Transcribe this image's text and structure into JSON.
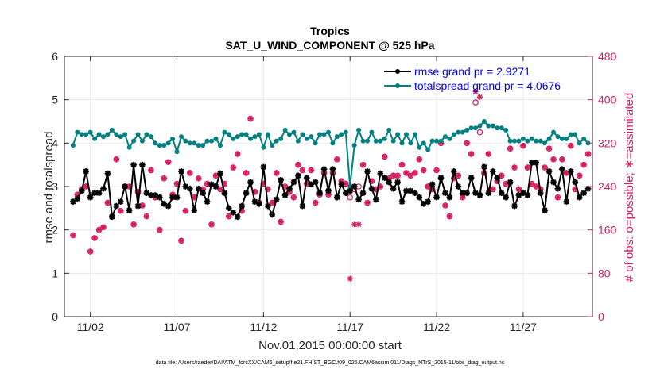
{
  "chart_data": {
    "type": "line",
    "title": "Tropics",
    "subtitle": "SAT_U_WIND_COMPONENT @ 525 hPa",
    "xlabel": "Nov.01,2015 00:00:00 start",
    "ylabel": "rmse and totalspread",
    "y2label": "# of obs: o=possible; ∗=assimilated",
    "footnote": "data file: /Users/raeder/DAI/ATM_forcXX/CAM6_setup/f.e21.FHIST_BGC.f09_025.CAM6assim.011/Diags_NTrS_2015-11/obs_diag_output.nc",
    "xlim": [
      0.5,
      31.0
    ],
    "ylim": [
      0,
      6
    ],
    "y2lim": [
      0,
      480
    ],
    "grid": true,
    "legend_position": "top-right",
    "x_tick_values": [
      2,
      7,
      12,
      17,
      22,
      27
    ],
    "x_tick_labels": [
      "11/02",
      "11/07",
      "11/12",
      "11/17",
      "11/22",
      "11/27"
    ],
    "y_ticks": [
      0,
      1,
      2,
      3,
      4,
      5,
      6
    ],
    "y2_ticks": [
      0,
      80,
      160,
      240,
      320,
      400,
      480
    ],
    "colors": {
      "rmse": "#000000",
      "totalspread": "#008080",
      "obs": "#d81b60",
      "legend_text": "#0000ff"
    },
    "series": [
      {
        "name": "rmse",
        "legend": "rmse grand pr = 2.9271",
        "axis": "left",
        "marker": "star",
        "x": [
          1.0,
          1.25,
          1.5,
          1.75,
          2.0,
          2.25,
          2.5,
          2.75,
          3.0,
          3.25,
          3.5,
          3.75,
          4.0,
          4.25,
          4.5,
          4.75,
          5.0,
          5.25,
          5.5,
          5.75,
          6.0,
          6.25,
          6.5,
          6.75,
          7.0,
          7.25,
          7.5,
          7.75,
          8.0,
          8.25,
          8.5,
          8.75,
          9.0,
          9.25,
          9.5,
          9.75,
          10.0,
          10.25,
          10.5,
          10.75,
          11.0,
          11.25,
          11.5,
          11.75,
          12.0,
          12.25,
          12.5,
          12.75,
          13.0,
          13.25,
          13.5,
          13.75,
          14.0,
          14.25,
          14.5,
          14.75,
          15.0,
          15.25,
          15.5,
          15.75,
          16.0,
          16.25,
          16.5,
          16.75,
          17.0,
          17.25,
          17.5,
          17.75,
          18.0,
          18.25,
          18.5,
          18.75,
          19.0,
          19.25,
          19.5,
          19.75,
          20.0,
          20.25,
          20.5,
          20.75,
          21.0,
          21.25,
          21.5,
          21.75,
          22.0,
          22.25,
          22.5,
          22.75,
          23.0,
          23.25,
          23.5,
          23.75,
          24.0,
          24.25,
          24.5,
          24.75,
          25.0,
          25.25,
          25.5,
          25.75,
          26.0,
          26.25,
          26.5,
          26.75,
          27.0,
          27.25,
          27.5,
          27.75,
          28.0,
          28.25,
          28.5,
          28.75,
          29.0,
          29.25,
          29.5,
          29.75,
          30.0,
          30.25,
          30.5,
          30.75
        ],
        "values": [
          2.65,
          2.72,
          2.9,
          3.35,
          2.75,
          2.85,
          2.85,
          2.95,
          3.3,
          2.3,
          2.55,
          2.65,
          3.0,
          2.45,
          3.5,
          2.55,
          3.5,
          2.85,
          2.8,
          2.8,
          2.75,
          2.6,
          2.55,
          2.75,
          2.75,
          3.35,
          3.0,
          2.95,
          2.45,
          2.95,
          2.85,
          2.65,
          3.05,
          3.0,
          3.3,
          2.85,
          2.5,
          2.4,
          2.3,
          2.55,
          2.85,
          3.1,
          2.65,
          2.6,
          3.45,
          2.55,
          2.35,
          2.7,
          3.15,
          2.8,
          2.95,
          3.1,
          3.25,
          2.55,
          3.2,
          3.05,
          3.1,
          2.85,
          3.4,
          2.9,
          3.4,
          2.75,
          3.05,
          2.85,
          2.9,
          3.0,
          2.7,
          2.85,
          3.35,
          2.95,
          2.7,
          3.3,
          3.2,
          3.1,
          2.95,
          3.1,
          2.65,
          2.9,
          2.9,
          2.85,
          2.75,
          2.6,
          2.65,
          3.05,
          2.75,
          3.2,
          2.85,
          2.75,
          3.35,
          3.0,
          2.85,
          2.85,
          3.2,
          2.85,
          2.8,
          3.45,
          2.85,
          3.35,
          3.2,
          2.85,
          2.75,
          3.1,
          2.55,
          2.8,
          2.85,
          2.8,
          3.55,
          3.55,
          2.85,
          2.45,
          3.35,
          3.1,
          2.95,
          3.4,
          2.65,
          3.35,
          3.1,
          2.75,
          2.85,
          2.95
        ]
      },
      {
        "name": "totalspread",
        "legend": "totalspread grand pr = 4.0676",
        "axis": "left",
        "marker": "circle",
        "x": [
          1.0,
          1.25,
          1.5,
          1.75,
          2.0,
          2.25,
          2.5,
          2.75,
          3.0,
          3.25,
          3.5,
          3.75,
          4.0,
          4.25,
          4.5,
          4.75,
          5.0,
          5.25,
          5.5,
          5.75,
          6.0,
          6.25,
          6.5,
          6.75,
          7.0,
          7.25,
          7.5,
          7.75,
          8.0,
          8.25,
          8.5,
          8.75,
          9.0,
          9.25,
          9.5,
          9.75,
          10.0,
          10.25,
          10.5,
          10.75,
          11.0,
          11.25,
          11.5,
          11.75,
          12.0,
          12.25,
          12.5,
          12.75,
          13.0,
          13.25,
          13.5,
          13.75,
          14.0,
          14.25,
          14.5,
          14.75,
          15.0,
          15.25,
          15.5,
          15.75,
          16.0,
          16.25,
          16.5,
          16.75,
          17.0,
          17.25,
          17.5,
          17.75,
          18.0,
          18.25,
          18.5,
          18.75,
          19.0,
          19.25,
          19.5,
          19.75,
          20.0,
          20.25,
          20.5,
          20.75,
          21.0,
          21.25,
          21.5,
          21.75,
          22.0,
          22.25,
          22.5,
          22.75,
          23.0,
          23.25,
          23.5,
          23.75,
          24.0,
          24.25,
          24.5,
          24.75,
          25.0,
          25.25,
          25.5,
          25.75,
          26.0,
          26.25,
          26.5,
          26.75,
          27.0,
          27.25,
          27.5,
          27.75,
          28.0,
          28.25,
          28.5,
          28.75,
          29.0,
          29.25,
          29.5,
          29.75,
          30.0,
          30.25,
          30.5,
          30.75
        ],
        "values": [
          3.95,
          4.25,
          4.2,
          4.2,
          4.25,
          4.1,
          4.2,
          4.15,
          4.2,
          4.3,
          4.2,
          4.15,
          4.2,
          3.9,
          4.05,
          4.2,
          4.05,
          4.2,
          4.15,
          4.0,
          3.95,
          3.95,
          4.0,
          4.1,
          3.8,
          4.15,
          4.05,
          4.0,
          4.0,
          3.95,
          3.95,
          4.05,
          4.05,
          4.1,
          3.95,
          4.25,
          4.2,
          4.1,
          4.15,
          4.2,
          4.2,
          4.1,
          4.15,
          4.2,
          3.9,
          4.2,
          3.95,
          4.05,
          4.1,
          4.3,
          4.2,
          4.25,
          4.05,
          4.2,
          4.1,
          4.15,
          4.0,
          4.2,
          4.2,
          4.25,
          4.0,
          4.15,
          4.2,
          4.25,
          3.0,
          3.95,
          4.3,
          4.05,
          4.05,
          4.25,
          4.05,
          4.05,
          4.1,
          4.3,
          4.05,
          4.2,
          4.0,
          4.2,
          4.0,
          4.2,
          3.9,
          4.0,
          3.85,
          4.05,
          4.05,
          4.05,
          4.15,
          4.1,
          4.2,
          4.25,
          4.25,
          4.3,
          4.35,
          4.35,
          4.4,
          4.5,
          4.4,
          4.4,
          4.35,
          4.35,
          4.3,
          4.05,
          4.05,
          4.05,
          4.1,
          4.05,
          4.1,
          4.05,
          4.05,
          4.0,
          4.1,
          4.25,
          4.15,
          4.1,
          4.1,
          4.2,
          4.2,
          4.0,
          4.1,
          4.0
        ]
      },
      {
        "name": "obs_possible",
        "axis": "right",
        "marker": "o",
        "x": [
          1.0,
          1.25,
          1.5,
          1.75,
          2.0,
          2.25,
          2.5,
          2.75,
          3.0,
          3.25,
          3.5,
          3.75,
          4.0,
          4.25,
          4.5,
          4.75,
          5.0,
          5.25,
          5.5,
          5.75,
          6.0,
          6.25,
          6.5,
          6.75,
          7.0,
          7.25,
          7.5,
          7.75,
          8.0,
          8.25,
          8.5,
          8.75,
          9.0,
          9.25,
          9.5,
          9.75,
          10.0,
          10.25,
          10.5,
          10.75,
          11.0,
          11.25,
          11.5,
          11.75,
          12.0,
          12.25,
          12.5,
          12.75,
          13.0,
          13.25,
          13.5,
          13.75,
          14.0,
          14.25,
          14.5,
          14.75,
          15.0,
          15.25,
          15.5,
          15.75,
          16.0,
          16.25,
          16.5,
          16.75,
          17.0,
          17.25,
          17.5,
          17.75,
          18.0,
          18.25,
          18.5,
          18.75,
          19.0,
          19.25,
          19.5,
          19.75,
          20.0,
          20.25,
          20.5,
          20.75,
          21.0,
          21.25,
          21.5,
          21.75,
          22.0,
          22.25,
          22.5,
          22.75,
          23.0,
          23.25,
          23.5,
          23.75,
          24.0,
          24.25,
          24.5,
          24.75,
          25.0,
          25.25,
          25.5,
          25.75,
          26.0,
          26.25,
          26.5,
          26.75,
          27.0,
          27.25,
          27.5,
          27.75,
          28.0,
          28.25,
          28.5,
          28.75,
          29.0,
          29.25,
          29.5,
          29.75,
          30.0,
          30.25,
          30.5,
          30.75
        ],
        "values": [
          150,
          225,
          235,
          240,
          120,
          145,
          160,
          165,
          210,
          185,
          290,
          195,
          240,
          240,
          170,
          230,
          205,
          185,
          270,
          220,
          160,
          255,
          285,
          225,
          245,
          140,
          195,
          265,
          220,
          255,
          235,
          245,
          170,
          260,
          235,
          245,
          185,
          275,
          300,
          195,
          265,
          365,
          230,
          210,
          245,
          235,
          210,
          265,
          175,
          240,
          230,
          220,
          280,
          270,
          245,
          270,
          210,
          225,
          265,
          225,
          265,
          290,
          250,
          245,
          220,
          235,
          240,
          280,
          210,
          250,
          235,
          240,
          295,
          255,
          260,
          260,
          280,
          265,
          260,
          265,
          290,
          270,
          240,
          235,
          270,
          320,
          205,
          185,
          255,
          260,
          220,
          320,
          300,
          395,
          340,
          265,
          300,
          235,
          250,
          260,
          245,
          310,
          275,
          235,
          315,
          275,
          245,
          240,
          235,
          275,
          310,
          290,
          220,
          290,
          265,
          315,
          235,
          260,
          280,
          300
        ]
      },
      {
        "name": "obs_assimilated",
        "axis": "right",
        "marker": "asterisk",
        "x": [
          1.0,
          1.25,
          1.5,
          1.75,
          2.0,
          2.25,
          2.5,
          2.75,
          3.0,
          3.25,
          3.5,
          3.75,
          4.0,
          4.25,
          4.5,
          4.75,
          5.0,
          5.25,
          5.5,
          5.75,
          6.0,
          6.25,
          6.5,
          6.75,
          7.0,
          7.25,
          7.5,
          7.75,
          8.0,
          8.25,
          8.5,
          8.75,
          9.0,
          9.25,
          9.5,
          9.75,
          10.0,
          10.25,
          10.5,
          10.75,
          11.0,
          11.25,
          11.5,
          11.75,
          12.0,
          12.25,
          12.5,
          12.75,
          13.0,
          13.25,
          13.5,
          13.75,
          14.0,
          14.25,
          14.5,
          14.75,
          15.0,
          15.25,
          15.5,
          15.75,
          16.0,
          16.25,
          16.5,
          16.75,
          17.0,
          17.25,
          17.5,
          17.75,
          18.0,
          18.25,
          18.5,
          18.75,
          19.0,
          19.25,
          19.5,
          19.75,
          20.0,
          20.25,
          20.5,
          20.75,
          21.0,
          21.25,
          21.5,
          21.75,
          22.0,
          22.25,
          22.5,
          22.75,
          23.0,
          23.25,
          23.5,
          23.75,
          24.0,
          24.25,
          24.5,
          24.75,
          25.0,
          25.25,
          25.5,
          25.75,
          26.0,
          26.25,
          26.5,
          26.75,
          27.0,
          27.25,
          27.5,
          27.75,
          28.0,
          28.25,
          28.5,
          28.75,
          29.0,
          29.25,
          29.5,
          29.75,
          30.0,
          30.25,
          30.5,
          30.75
        ],
        "values": [
          150,
          225,
          235,
          240,
          120,
          145,
          160,
          165,
          210,
          185,
          290,
          195,
          240,
          240,
          170,
          230,
          205,
          185,
          270,
          220,
          160,
          255,
          285,
          225,
          245,
          140,
          195,
          265,
          220,
          255,
          235,
          245,
          170,
          260,
          235,
          245,
          185,
          275,
          300,
          195,
          265,
          365,
          230,
          210,
          245,
          235,
          210,
          265,
          175,
          240,
          230,
          220,
          280,
          270,
          245,
          270,
          210,
          225,
          265,
          225,
          265,
          290,
          250,
          245,
          70,
          170,
          170,
          280,
          210,
          250,
          235,
          240,
          295,
          255,
          260,
          260,
          280,
          265,
          260,
          265,
          290,
          270,
          240,
          235,
          270,
          320,
          205,
          185,
          255,
          260,
          220,
          320,
          300,
          415,
          405,
          265,
          300,
          235,
          250,
          260,
          245,
          310,
          275,
          235,
          315,
          275,
          245,
          240,
          235,
          275,
          310,
          290,
          220,
          290,
          265,
          315,
          235,
          260,
          280,
          300
        ]
      }
    ]
  }
}
